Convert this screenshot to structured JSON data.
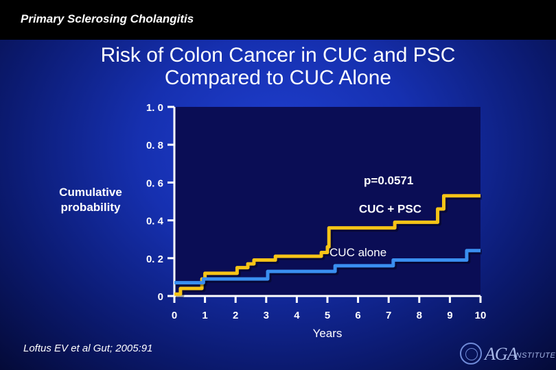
{
  "header": {
    "section_title": "Primary Sclerosing Cholangitis"
  },
  "slide": {
    "title_line1": "Risk of Colon Cancer in CUC and PSC",
    "title_line2": "Compared to CUC Alone"
  },
  "citation": "Loftus EV et al Gut; 2005:91",
  "logo": {
    "text": "AGA",
    "suffix": "INSTITUTE"
  },
  "colors": {
    "psc": "#f7c417",
    "cuc": "#3a8ff0",
    "axis": "#ffffff"
  },
  "chart_data": {
    "type": "line",
    "subtype": "step",
    "title": "",
    "xlabel": "Years",
    "ylabel_lines": [
      "Cumulative",
      "probability"
    ],
    "xlim": [
      0,
      10
    ],
    "ylim": [
      0,
      1.0
    ],
    "x_ticks": [
      "0",
      "1",
      "2",
      "3",
      "4",
      "5",
      "6",
      "7",
      "8",
      "9",
      "10"
    ],
    "y_ticks": [
      {
        "value": 0,
        "label": "0"
      },
      {
        "value": 0.2,
        "label": "0. 2"
      },
      {
        "value": 0.4,
        "label": "0. 4"
      },
      {
        "value": 0.6,
        "label": "0. 6"
      },
      {
        "value": 0.8,
        "label": "0. 8"
      },
      {
        "value": 1.0,
        "label": "1. 0"
      }
    ],
    "annotations": {
      "p_value": "p=0.0571"
    },
    "series": [
      {
        "name": "CUC + PSC",
        "label": "CUC + PSC",
        "steps": [
          [
            0,
            0.01
          ],
          [
            0.2,
            0.04
          ],
          [
            0.9,
            0.09
          ],
          [
            1.0,
            0.12
          ],
          [
            2.0,
            0.12
          ],
          [
            2.05,
            0.15
          ],
          [
            2.4,
            0.17
          ],
          [
            2.6,
            0.19
          ],
          [
            3.3,
            0.21
          ],
          [
            4.8,
            0.23
          ],
          [
            5.0,
            0.26
          ],
          [
            5.05,
            0.36
          ],
          [
            7.2,
            0.39
          ],
          [
            8.6,
            0.46
          ],
          [
            8.8,
            0.53
          ],
          [
            10,
            0.53
          ]
        ]
      },
      {
        "name": "CUC alone",
        "label": "CUC alone",
        "steps": [
          [
            0,
            0.07
          ],
          [
            0.9,
            0.07
          ],
          [
            0.95,
            0.09
          ],
          [
            3.0,
            0.09
          ],
          [
            3.05,
            0.13
          ],
          [
            5.2,
            0.13
          ],
          [
            5.25,
            0.16
          ],
          [
            7.1,
            0.16
          ],
          [
            7.15,
            0.19
          ],
          [
            9.5,
            0.19
          ],
          [
            9.55,
            0.24
          ],
          [
            10,
            0.24
          ]
        ]
      }
    ]
  }
}
